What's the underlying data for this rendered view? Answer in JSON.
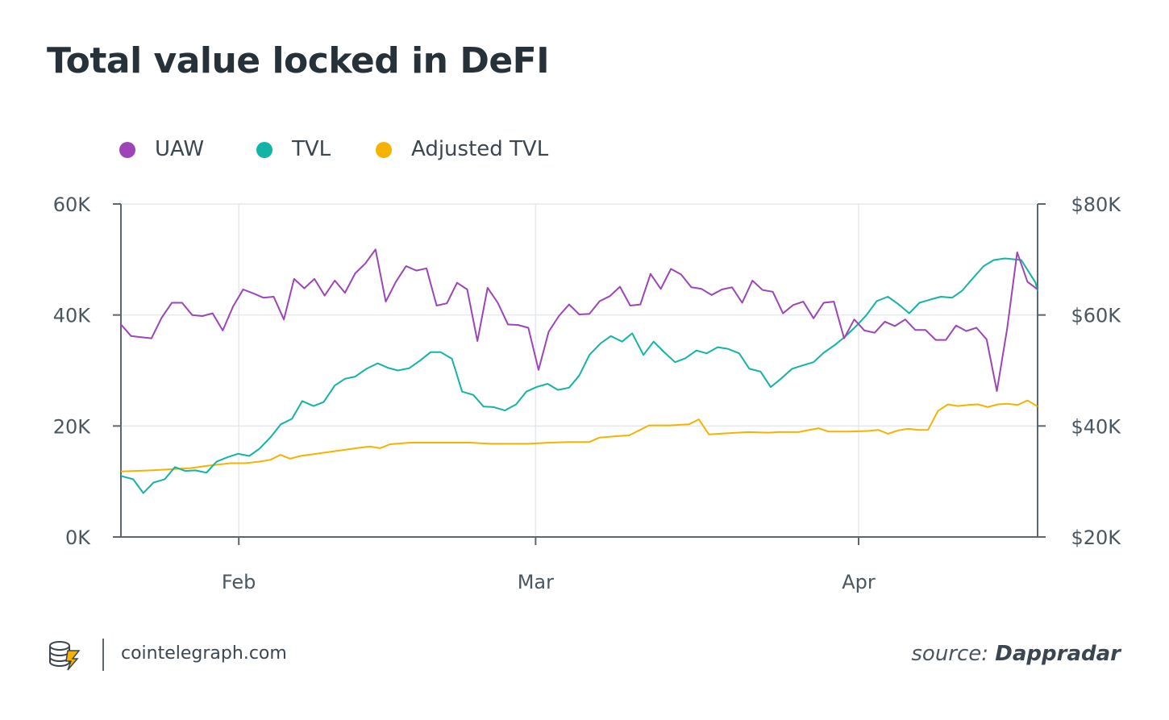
{
  "title": "Total value locked in DeFI",
  "footer": {
    "site": "cointelegraph.com",
    "source_prefix": "source:",
    "source_name": "Dappradar"
  },
  "colors": {
    "UAW": "#9b45b8",
    "TVL": "#13b3a6",
    "Adjusted TVL": "#f5b300",
    "axis": "#5b6670",
    "grid": "#e6e9ec"
  },
  "chart_data": {
    "type": "line",
    "legend_position": "top-left",
    "grid": true,
    "x_range": [
      0,
      105
    ],
    "x_ticks": [
      {
        "at": 13.5,
        "label": "Feb"
      },
      {
        "at": 47.5,
        "label": "Mar"
      },
      {
        "at": 84.5,
        "label": "Apr"
      }
    ],
    "left_axis": {
      "range": [
        0,
        60000
      ],
      "ticks": [
        {
          "value": 0,
          "label": "0K"
        },
        {
          "value": 20000,
          "label": "20K"
        },
        {
          "value": 40000,
          "label": "40K"
        },
        {
          "value": 60000,
          "label": "60K"
        }
      ]
    },
    "right_axis": {
      "range": [
        20000,
        80000
      ],
      "ticks": [
        {
          "value": 20000,
          "label": "$20K"
        },
        {
          "value": 40000,
          "label": "$40K"
        },
        {
          "value": 60000,
          "label": "$60K"
        },
        {
          "value": 80000,
          "label": "$80K"
        }
      ]
    },
    "series": [
      {
        "name": "UAW",
        "axis": "left",
        "values": [
          38300,
          36200,
          36000,
          35800,
          39500,
          42200,
          42200,
          40000,
          39800,
          40300,
          37200,
          41500,
          44600,
          43900,
          43100,
          43300,
          39200,
          46500,
          44800,
          46500,
          43500,
          46200,
          44000,
          47500,
          49300,
          51800,
          42400,
          46000,
          48800,
          48000,
          48400,
          41700,
          42100,
          45800,
          44600,
          35300,
          44900,
          42200,
          38300,
          38200,
          37700,
          30100,
          37000,
          39800,
          41900,
          40100,
          40200,
          42500,
          43400,
          45100,
          41700,
          41900,
          47400,
          44700,
          48300,
          47300,
          45000,
          44700,
          43600,
          44600,
          45000,
          42200,
          46200,
          44500,
          44200,
          40300,
          41800,
          42400,
          39400,
          42200,
          42400,
          35800,
          39200,
          37200,
          36800,
          38800,
          38000,
          39200,
          37300,
          37300,
          35500,
          35500,
          38100,
          37100,
          37700,
          35600,
          26300,
          37400,
          51300,
          46000,
          44600
        ],
        "x": [
          0,
          1,
          2,
          3,
          4,
          5,
          6,
          7,
          8,
          9,
          10,
          11,
          12,
          13,
          14,
          15,
          16,
          17,
          18,
          19,
          20,
          21,
          22,
          23,
          24,
          25,
          26,
          27,
          28,
          29,
          30,
          31,
          32,
          33,
          34,
          35,
          36,
          37,
          38,
          39,
          40,
          41,
          42,
          43,
          44,
          45,
          46,
          47,
          48,
          49,
          50,
          51,
          52,
          53,
          54,
          55,
          56,
          57,
          58,
          59,
          60,
          61,
          62,
          63,
          64,
          65,
          66,
          67,
          68,
          69,
          70,
          71,
          72,
          73,
          74,
          75,
          76,
          77,
          78,
          79,
          80,
          81,
          82,
          83,
          84,
          85,
          86,
          87,
          88,
          89,
          90
        ]
      },
      {
        "name": "TVL",
        "axis": "right",
        "values": [
          31000,
          30400,
          27900,
          29800,
          30400,
          32600,
          31900,
          32000,
          31600,
          33600,
          34400,
          35000,
          34600,
          35900,
          38000,
          40300,
          41300,
          44500,
          43600,
          44300,
          47300,
          48500,
          48900,
          50300,
          51300,
          50500,
          50000,
          50400,
          51700,
          53300,
          53300,
          52100,
          46200,
          45600,
          43500,
          43400,
          42800,
          43900,
          46200,
          47000,
          47600,
          46500,
          46900,
          49100,
          52800,
          54900,
          56200,
          55200,
          56700,
          52800,
          55200,
          53200,
          51500,
          52200,
          53600,
          53100,
          54200,
          53900,
          53100,
          50300,
          49800,
          47000,
          48500,
          50300,
          50900,
          51500,
          53200,
          54600,
          56100,
          58000,
          60000,
          62500,
          63300,
          62000,
          60300,
          62200,
          62800,
          63300,
          63100,
          64400,
          66500,
          68800,
          69900,
          70200,
          69900,
          65800,
          64300
        ],
        "x": [
          0,
          1.2,
          2.2,
          3.2,
          4.3,
          5.3,
          6.3,
          7.3,
          8.4,
          9.4,
          10.5,
          11.5,
          12.6,
          13.6,
          14.7,
          15.7,
          16.8,
          17.8,
          18.9,
          19.9,
          21.0,
          22.0,
          23.0,
          24.1,
          25.2,
          26.2,
          27.2,
          28.3,
          29.3,
          30.4,
          31.4,
          32.5,
          33.5,
          34.6,
          35.6,
          36.6,
          37.7,
          38.8,
          39.8,
          40.8,
          41.9,
          42.9,
          44.0,
          45.0,
          46.0,
          47.1,
          48.1,
          49.2,
          50.2,
          51.3,
          52.3,
          53.4,
          54.4,
          55.4,
          56.5,
          57.5,
          58.6,
          59.6,
          60.7,
          61.7,
          62.8,
          63.8,
          64.8,
          65.9,
          66.9,
          68.0,
          69.0,
          70.1,
          71.1,
          72.2,
          73.2,
          74.2,
          75.3,
          76.3,
          77.4,
          78.4,
          79.5,
          80.5,
          81.6,
          82.6,
          83.6,
          84.7,
          85.7,
          86.8,
          88.4,
          89.8,
          90
        ]
      },
      {
        "name": "Adjusted TVL",
        "axis": "left",
        "values": [
          11800,
          12000,
          12200,
          12400,
          12900,
          13300,
          13300,
          13600,
          13900,
          14800,
          14100,
          14600,
          15100,
          15600,
          16100,
          16300,
          16000,
          16700,
          17000,
          17000,
          17000,
          17000,
          16800,
          16800,
          16800,
          17000,
          17100,
          17100,
          17900,
          18200,
          18300,
          20100,
          20100,
          20300,
          21200,
          18500,
          18700,
          18900,
          18800,
          18900,
          18900,
          19600,
          19000,
          19000,
          19100,
          19300,
          18600,
          19200,
          19500,
          19300,
          19300,
          22700,
          23900,
          23600,
          23800,
          23900,
          23400,
          23900,
          24000,
          23800,
          24600,
          23500
        ],
        "x": [
          0,
          3,
          5,
          7,
          9,
          11,
          12.5,
          14,
          15,
          16,
          17,
          18,
          20,
          22,
          24,
          25,
          26,
          27,
          29,
          31,
          33,
          35,
          37,
          39,
          41,
          43,
          45,
          47,
          48,
          50,
          51,
          53,
          55,
          57,
          58,
          59,
          61,
          63,
          65,
          66,
          68,
          70,
          71,
          73,
          75,
          76,
          77,
          78,
          79,
          80,
          81,
          82,
          83,
          84,
          85,
          86,
          87,
          88,
          89,
          90,
          91,
          92
        ],
        "x_scale": 0.978
      }
    ]
  }
}
